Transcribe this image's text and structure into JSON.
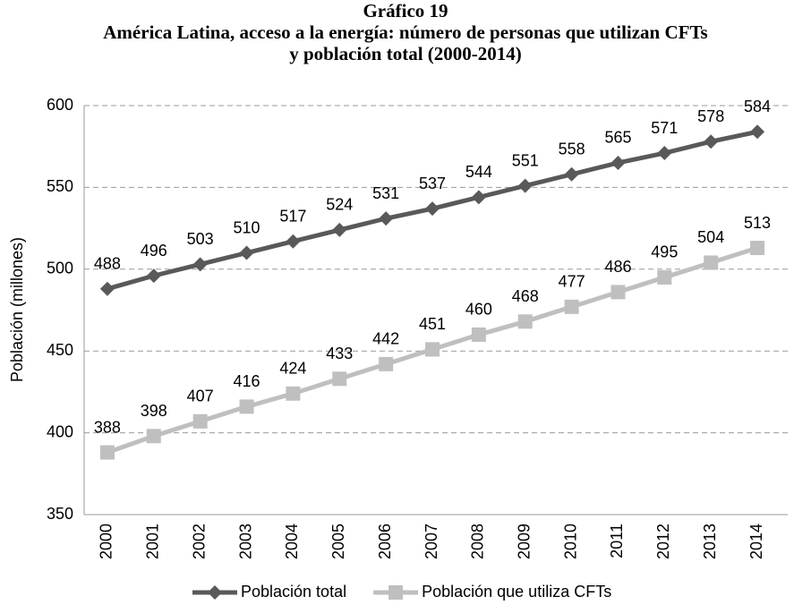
{
  "chart_data": {
    "type": "line",
    "title": "Gráfico 19",
    "subtitle": [
      "América Latina, acceso a la energía: número de personas que utilizan CFTs",
      "y población total (2000-2014)"
    ],
    "y_label": "Población (millones)",
    "categories": [
      "2000",
      "2001",
      "2002",
      "2003",
      "2004",
      "2005",
      "2006",
      "2007",
      "2008",
      "2009",
      "2010",
      "2011",
      "2012",
      "2013",
      "2014"
    ],
    "series": [
      {
        "name": "Población total",
        "color": "#595959",
        "marker": "diamond",
        "values": [
          488,
          496,
          503,
          510,
          517,
          524,
          531,
          537,
          544,
          551,
          558,
          565,
          571,
          578,
          584
        ]
      },
      {
        "name": "Población que utiliza CFTs",
        "color": "#bfbfbf",
        "marker": "square",
        "values": [
          388,
          398,
          407,
          416,
          424,
          433,
          442,
          451,
          460,
          468,
          477,
          486,
          495,
          504,
          513
        ]
      }
    ],
    "ylim": [
      350,
      600
    ],
    "yticks": [
      350,
      400,
      450,
      500,
      550,
      600
    ],
    "grid": true,
    "legend": "bottom"
  }
}
